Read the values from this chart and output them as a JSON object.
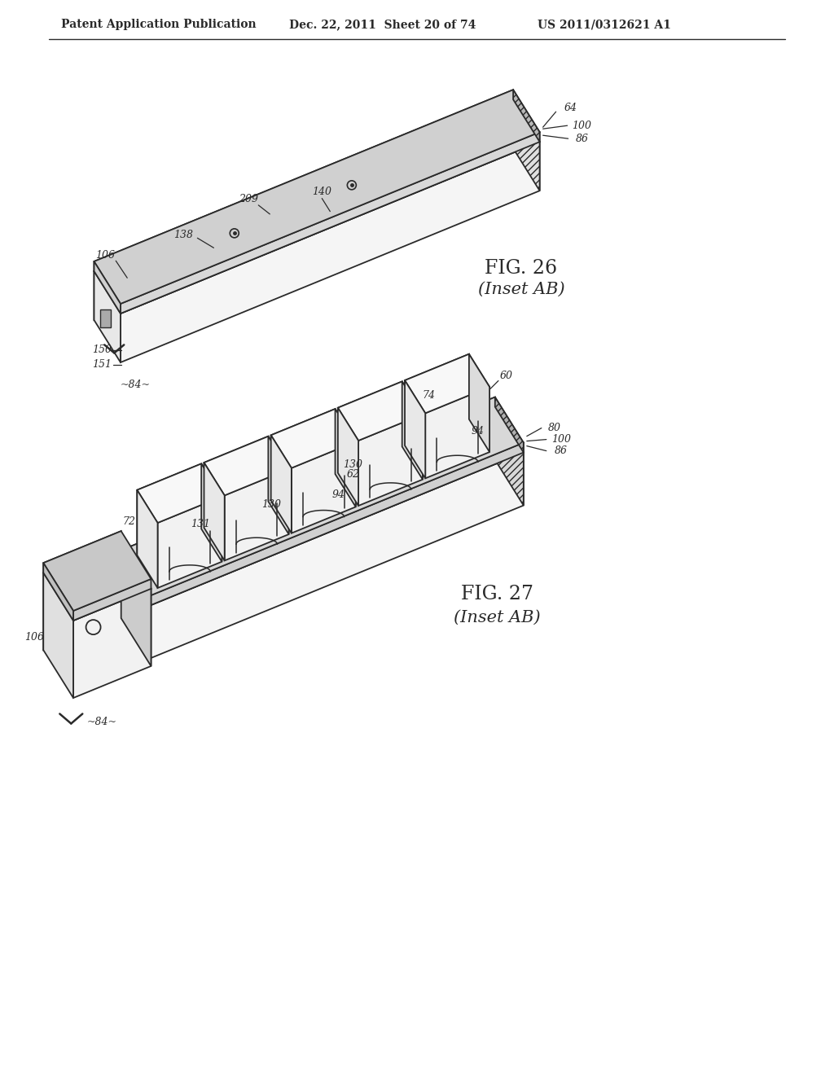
{
  "header_left": "Patent Application Publication",
  "header_mid": "Dec. 22, 2011  Sheet 20 of 74",
  "header_right": "US 2011/0312621 A1",
  "fig26_title": "FIG. 26",
  "fig26_sub": "(Inset AB)",
  "fig27_title": "FIG. 27",
  "fig27_sub": "(Inset AB)",
  "bg_color": "#ffffff",
  "line_color": "#2a2a2a"
}
